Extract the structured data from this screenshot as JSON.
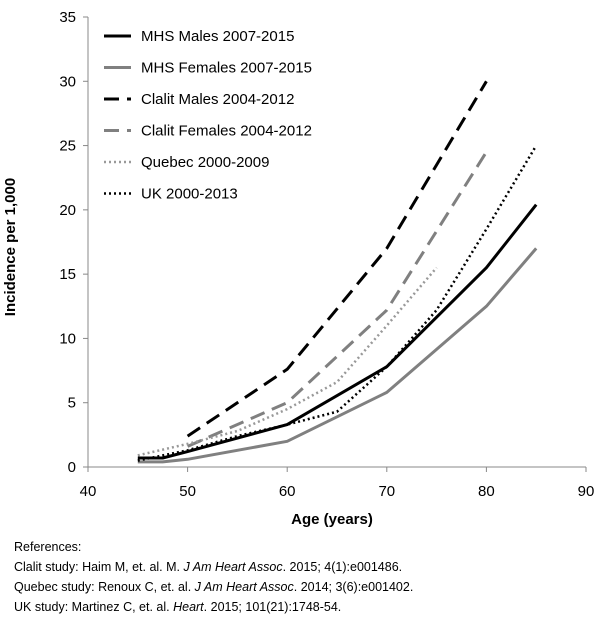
{
  "chart_data": {
    "type": "line",
    "xlabel": "Age (years)",
    "ylabel": "Incidence per 1,000",
    "xlim": [
      40,
      90
    ],
    "ylim": [
      0,
      35
    ],
    "x_ticks": [
      "40",
      "50",
      "60",
      "70",
      "80",
      "90"
    ],
    "y_ticks": [
      "0",
      "5",
      "10",
      "15",
      "20",
      "25",
      "30",
      "35"
    ],
    "grid": false,
    "legend_position": "top-left",
    "series": [
      {
        "name": "MHS Males 2007-2015",
        "color": "#000000",
        "style": "solid",
        "points": [
          [
            45,
            0.7
          ],
          [
            47.5,
            0.7
          ],
          [
            50,
            1.2
          ],
          [
            60,
            3.3
          ],
          [
            70,
            7.8
          ],
          [
            80,
            15.5
          ],
          [
            85,
            20.4
          ]
        ]
      },
      {
        "name": "MHS Females 2007-2015",
        "color": "#808080",
        "style": "solid",
        "points": [
          [
            45,
            0.4
          ],
          [
            47.5,
            0.4
          ],
          [
            50,
            0.6
          ],
          [
            60,
            2.0
          ],
          [
            70,
            5.8
          ],
          [
            80,
            12.5
          ],
          [
            85,
            17.0
          ]
        ]
      },
      {
        "name": "Clalit Males 2004-2012",
        "color": "#000000",
        "style": "dashed",
        "points": [
          [
            50,
            2.4
          ],
          [
            60,
            7.6
          ],
          [
            70,
            17.0
          ],
          [
            80,
            30.0
          ]
        ]
      },
      {
        "name": "Clalit Females 2004-2012",
        "color": "#808080",
        "style": "dashed",
        "points": [
          [
            50,
            1.6
          ],
          [
            60,
            5.0
          ],
          [
            70,
            12.2
          ],
          [
            80,
            24.5
          ]
        ]
      },
      {
        "name": "Quebec 2000-2009",
        "color": "#999999",
        "style": "dotted",
        "points": [
          [
            45,
            0.9
          ],
          [
            50,
            1.8
          ],
          [
            55,
            2.8
          ],
          [
            60,
            4.5
          ],
          [
            65,
            6.6
          ],
          [
            70,
            11.0
          ],
          [
            75,
            15.5
          ]
        ]
      },
      {
        "name": "UK 2000-2013",
        "color": "#000000",
        "style": "dotted",
        "points": [
          [
            45,
            0.5
          ],
          [
            50,
            1.3
          ],
          [
            55,
            2.4
          ],
          [
            60,
            3.3
          ],
          [
            65,
            4.3
          ],
          [
            70,
            7.8
          ],
          [
            75,
            12.2
          ],
          [
            80,
            18.5
          ],
          [
            85,
            25.0
          ]
        ]
      }
    ]
  },
  "references": {
    "heading": "References:",
    "items": [
      {
        "prefix": "Clalit study:  Haim M, et. al. M. ",
        "journal": "J Am Heart Assoc",
        "suffix": ". 2015; 4(1):e001486."
      },
      {
        "prefix": "Quebec study: Renoux C, et. al. ",
        "journal": "J Am Heart Assoc",
        "suffix": ". 2014; 3(6):e001402."
      },
      {
        "prefix": "UK study: Martinez C, et. al. ",
        "journal": "Heart",
        "suffix": ". 2015; 101(21):1748-54."
      }
    ]
  }
}
